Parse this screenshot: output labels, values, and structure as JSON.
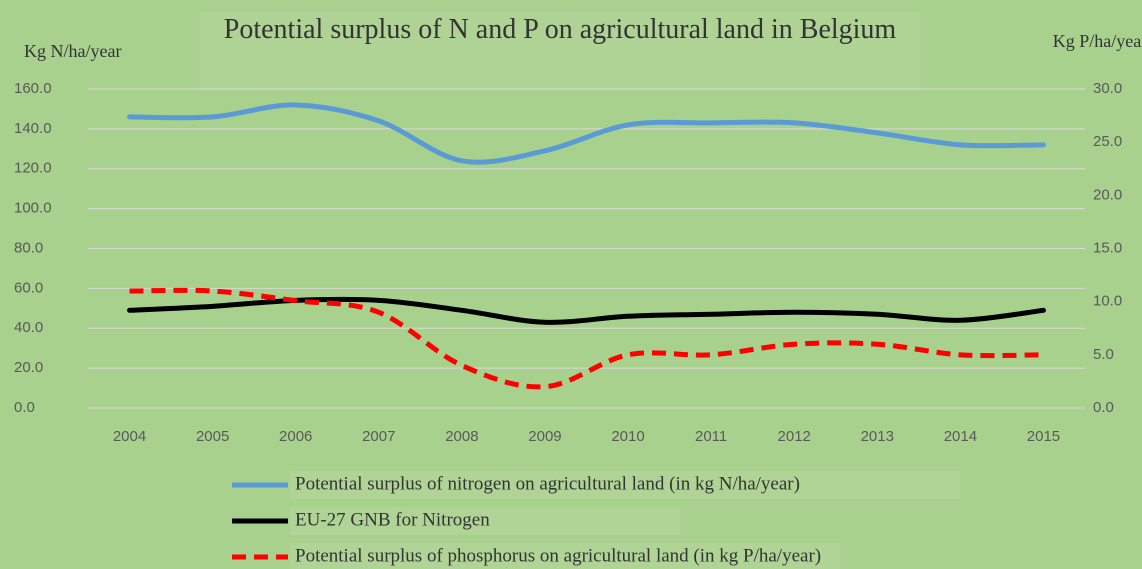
{
  "chart_data": {
    "type": "line",
    "title": "Potential surplus of N and P on agricultural land in Belgium",
    "y_label": "Kg N/ha/year",
    "y2_label": "Kg P/ha/year",
    "categories": [
      "2004",
      "2005",
      "2006",
      "2007",
      "2008",
      "2009",
      "2010",
      "2011",
      "2012",
      "2013",
      "2014",
      "2015"
    ],
    "series": [
      {
        "name": "Potential surplus of nitrogen on agricultural land (in kg N/ha/year)",
        "color": "#5b9bd5",
        "values": [
          146,
          146,
          152,
          144,
          124,
          129,
          142,
          143,
          143,
          138,
          132,
          132
        ]
      },
      {
        "name": "EU-27 GNB for Nitrogen",
        "color": "#000000",
        "values": [
          49,
          51,
          54,
          54,
          49,
          43,
          46,
          47,
          48,
          47,
          44,
          49
        ]
      },
      {
        "name": "Potential surplus of phosphorus on agricultural land (in kg P/ha/year)",
        "color": "#ff0000",
        "dashed": true,
        "axis": "y2",
        "values": [
          11,
          11,
          10.1,
          9,
          4,
          2,
          5,
          5,
          6,
          6,
          5,
          5
        ]
      }
    ],
    "ylim": [
      0,
      160
    ],
    "yticks": [
      {
        "value": 0,
        "label": "0.0"
      },
      {
        "value": 20,
        "label": "20.0"
      },
      {
        "value": 40,
        "label": "40.0"
      },
      {
        "value": 60,
        "label": "60.0"
      },
      {
        "value": 80,
        "label": "80.0"
      },
      {
        "value": 100,
        "label": "100.0"
      },
      {
        "value": 120,
        "label": "120.0"
      },
      {
        "value": 140,
        "label": "140.0"
      },
      {
        "value": 160,
        "label": "160.0"
      }
    ],
    "y2lim": [
      0,
      30
    ],
    "y2ticks": [
      {
        "value": 0,
        "label": "0.0"
      },
      {
        "value": 5,
        "label": "5.0"
      },
      {
        "value": 10,
        "label": "10.0"
      },
      {
        "value": 15,
        "label": "15.0"
      },
      {
        "value": 20,
        "label": "20.0"
      },
      {
        "value": 25,
        "label": "25.0"
      },
      {
        "value": 30,
        "label": "30.0"
      }
    ],
    "grid": true,
    "legend": "bottom"
  }
}
